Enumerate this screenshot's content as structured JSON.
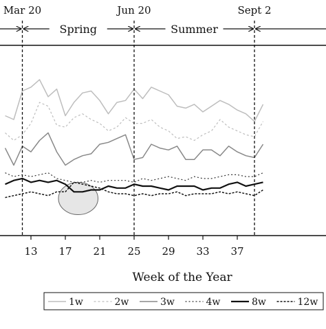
{
  "chart_data": {
    "type": "line",
    "xlabel": "Week of the Year",
    "ylabel": "",
    "xlim": [
      9.5,
      39.5
    ],
    "ylim": [
      0,
      1
    ],
    "x_ticks": [
      "13",
      "17",
      "21",
      "25",
      "29",
      "33",
      "37"
    ],
    "grid": false,
    "legend_position": "bottom-right",
    "dates": [
      {
        "label": "Mar 20",
        "week": 12
      },
      {
        "label": "Jun 20",
        "week": 25
      },
      {
        "label": "Sept 2",
        "week": 39
      }
    ],
    "seasons": [
      {
        "name": "Spring",
        "from_week": 12,
        "to_week": 25
      },
      {
        "name": "Summer",
        "from_week": 25,
        "to_week": 39
      }
    ],
    "annotation": {
      "type": "ellipse",
      "week_center": 18.5,
      "value_center": 0.195,
      "week_radius": 2.3,
      "value_radius": 0.085
    },
    "series": [
      {
        "name": "1w",
        "color": "#bdbdbd",
        "width": 1.5,
        "dash": "",
        "x": [
          10,
          11,
          12,
          13,
          14,
          15,
          16,
          17,
          18,
          19,
          20,
          21,
          22,
          23,
          24,
          25,
          26,
          27,
          28,
          29,
          30,
          31,
          32,
          33,
          34,
          35,
          36,
          37,
          38,
          39,
          40
        ],
        "values": [
          0.63,
          0.61,
          0.76,
          0.78,
          0.82,
          0.73,
          0.77,
          0.63,
          0.7,
          0.75,
          0.76,
          0.71,
          0.64,
          0.7,
          0.71,
          0.77,
          0.72,
          0.78,
          0.76,
          0.74,
          0.68,
          0.67,
          0.69,
          0.65,
          0.68,
          0.71,
          0.69,
          0.66,
          0.64,
          0.6,
          0.69
        ]
      },
      {
        "name": "2w",
        "color": "#bdbdbd",
        "width": 1.2,
        "dash": "3,3",
        "x": [
          10,
          11,
          12,
          13,
          14,
          15,
          16,
          17,
          18,
          19,
          20,
          21,
          22,
          23,
          24,
          25,
          26,
          27,
          28,
          29,
          30,
          31,
          32,
          33,
          34,
          35,
          36,
          37,
          38,
          39,
          40
        ],
        "values": [
          0.54,
          0.5,
          0.53,
          0.59,
          0.7,
          0.68,
          0.58,
          0.57,
          0.62,
          0.64,
          0.61,
          0.59,
          0.55,
          0.57,
          0.62,
          0.59,
          0.59,
          0.61,
          0.57,
          0.55,
          0.51,
          0.52,
          0.5,
          0.53,
          0.55,
          0.61,
          0.57,
          0.55,
          0.53,
          0.52,
          0.6
        ]
      },
      {
        "name": "3w",
        "color": "#888888",
        "width": 1.5,
        "dash": "",
        "x": [
          10,
          11,
          12,
          13,
          14,
          15,
          16,
          17,
          18,
          19,
          20,
          21,
          22,
          23,
          24,
          25,
          26,
          27,
          28,
          29,
          30,
          31,
          32,
          33,
          34,
          35,
          36,
          37,
          38,
          39,
          40
        ],
        "values": [
          0.46,
          0.37,
          0.47,
          0.44,
          0.5,
          0.54,
          0.44,
          0.37,
          0.4,
          0.42,
          0.43,
          0.48,
          0.49,
          0.51,
          0.53,
          0.4,
          0.41,
          0.48,
          0.46,
          0.45,
          0.47,
          0.4,
          0.4,
          0.45,
          0.45,
          0.42,
          0.47,
          0.44,
          0.42,
          0.41,
          0.48
        ]
      },
      {
        "name": "4w",
        "color": "#333333",
        "width": 1.2,
        "dash": "2,3",
        "x": [
          10,
          11,
          12,
          13,
          14,
          15,
          16,
          17,
          18,
          19,
          20,
          21,
          22,
          23,
          24,
          25,
          26,
          27,
          28,
          29,
          30,
          31,
          32,
          33,
          34,
          35,
          36,
          37,
          38,
          39,
          40
        ],
        "values": [
          0.33,
          0.31,
          0.32,
          0.31,
          0.32,
          0.33,
          0.3,
          0.29,
          0.28,
          0.28,
          0.29,
          0.28,
          0.29,
          0.29,
          0.29,
          0.28,
          0.3,
          0.29,
          0.3,
          0.31,
          0.3,
          0.29,
          0.31,
          0.3,
          0.3,
          0.31,
          0.32,
          0.32,
          0.31,
          0.31,
          0.33
        ]
      },
      {
        "name": "8w",
        "color": "#111111",
        "width": 2.2,
        "dash": "",
        "x": [
          10,
          11,
          12,
          13,
          14,
          15,
          16,
          17,
          18,
          19,
          20,
          21,
          22,
          23,
          24,
          25,
          26,
          27,
          28,
          29,
          30,
          31,
          32,
          33,
          34,
          35,
          36,
          37,
          38,
          39,
          40
        ],
        "values": [
          0.27,
          0.29,
          0.3,
          0.28,
          0.29,
          0.28,
          0.29,
          0.27,
          0.23,
          0.23,
          0.24,
          0.24,
          0.26,
          0.25,
          0.25,
          0.27,
          0.26,
          0.26,
          0.25,
          0.24,
          0.26,
          0.26,
          0.26,
          0.24,
          0.25,
          0.25,
          0.27,
          0.28,
          0.26,
          0.27,
          0.28
        ]
      },
      {
        "name": "12w",
        "color": "#111111",
        "width": 1.5,
        "dash": "3,2",
        "x": [
          10,
          11,
          12,
          13,
          14,
          15,
          16,
          17,
          18,
          19,
          20,
          21,
          22,
          23,
          24,
          25,
          26,
          27,
          28,
          29,
          30,
          31,
          32,
          33,
          34,
          35,
          36,
          37,
          38,
          39,
          40
        ],
        "values": [
          0.2,
          0.21,
          0.22,
          0.23,
          0.22,
          0.21,
          0.23,
          0.23,
          0.28,
          0.27,
          0.26,
          0.25,
          0.23,
          0.22,
          0.22,
          0.21,
          0.22,
          0.21,
          0.22,
          0.22,
          0.23,
          0.21,
          0.22,
          0.22,
          0.22,
          0.23,
          0.22,
          0.23,
          0.22,
          0.21,
          0.24
        ]
      }
    ]
  }
}
